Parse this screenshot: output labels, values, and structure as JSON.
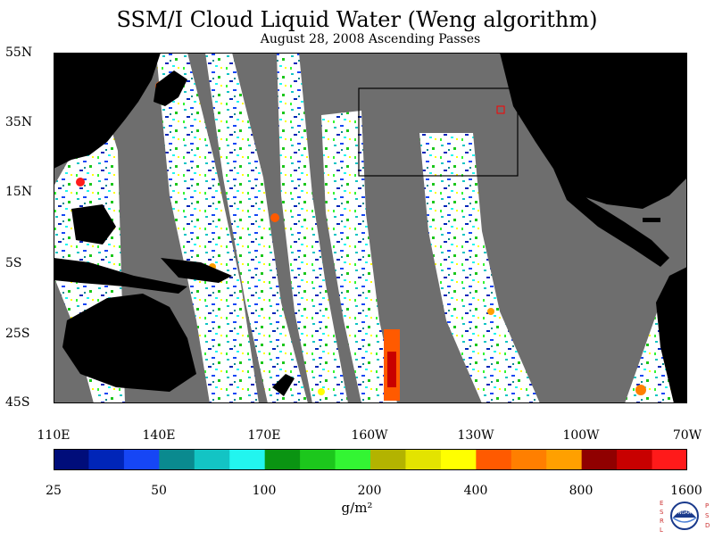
{
  "title": "SSM/I Cloud Liquid Water (Weng algorithm)",
  "subtitle": "August 28, 2008  Ascending Passes",
  "lat_labels": [
    "55N",
    "35N",
    "15N",
    "5S",
    "25S",
    "45S"
  ],
  "lon_labels": [
    "110E",
    "140E",
    "170E",
    "160W",
    "130W",
    "100W",
    "70W"
  ],
  "colorbar": {
    "colors": [
      "#000d7a",
      "#0025b8",
      "#1646f5",
      "#0a8a8f",
      "#13c4c4",
      "#22f5ef",
      "#0a9412",
      "#1cc71c",
      "#33f533",
      "#b3b300",
      "#e3e300",
      "#ffff00",
      "#ff5a00",
      "#ff7f00",
      "#ffa000",
      "#900000",
      "#c80000",
      "#ff1a1a"
    ],
    "labels": [
      "25",
      "50",
      "100",
      "200",
      "400",
      "800",
      "1600"
    ],
    "units": "g/m²"
  },
  "logo": {
    "left_letters": [
      "E",
      "S",
      "R",
      "L"
    ],
    "right_letters": [
      "P",
      "S",
      "D"
    ],
    "center": "NOAA"
  }
}
